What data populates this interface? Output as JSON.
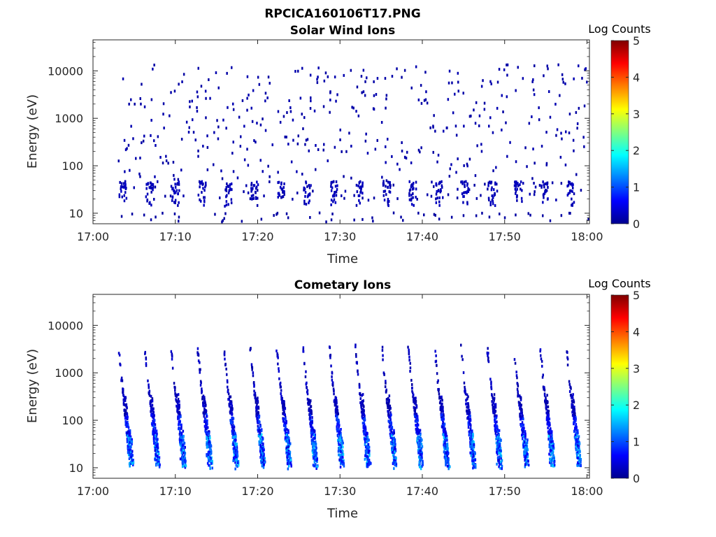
{
  "figure_title": "RPCICA160106T17.PNG",
  "colormap": {
    "name": "jet",
    "stops": [
      "#00008f",
      "#0000ff",
      "#00ffff",
      "#ffff00",
      "#ff0000",
      "#800000"
    ],
    "range": [
      0,
      5
    ],
    "ticks": [
      "0",
      "1",
      "2",
      "3",
      "4",
      "5"
    ],
    "label": "Log Counts"
  },
  "chart_data": [
    {
      "type": "heatmap",
      "title": "Solar Wind Ions",
      "xlabel": "Time",
      "ylabel": "Energy (eV)",
      "x_ticks": [
        "17:00",
        "17:10",
        "17:20",
        "17:30",
        "17:40",
        "17:50",
        "18:00"
      ],
      "x_tick_minutes": [
        0,
        10,
        20,
        30,
        40,
        50,
        60
      ],
      "xlim_minutes": [
        0,
        60.3
      ],
      "y_scale": "log",
      "y_ticks": [
        "10",
        "100",
        "1000",
        "10000"
      ],
      "y_tick_values": [
        10,
        100,
        1000,
        10000
      ],
      "ylim": [
        6,
        45000
      ],
      "data_start_minute": 3,
      "sweep_period_minutes": 3.2,
      "description_of_values": "sparse single counts (log counts ~0.1) scattered at all energies; denser cluster 15-50 eV",
      "max_log_counts": 0.3
    },
    {
      "type": "heatmap",
      "title": "Cometary Ions",
      "xlabel": "Time",
      "ylabel": "Energy (eV)",
      "x_ticks": [
        "17:00",
        "17:10",
        "17:20",
        "17:30",
        "17:40",
        "17:50",
        "18:00"
      ],
      "x_tick_minutes": [
        0,
        10,
        20,
        30,
        40,
        50,
        60
      ],
      "xlim_minutes": [
        0,
        60.3
      ],
      "y_scale": "log",
      "y_ticks": [
        "10",
        "100",
        "1000",
        "10000"
      ],
      "y_tick_values": [
        10,
        100,
        1000,
        10000
      ],
      "ylim": [
        6,
        45000
      ],
      "data_start_minute": 3,
      "sweep_period_minutes": 3.2,
      "description_of_values": "repeating energy sweeps from ~3500 eV down to ~12 eV; highest log counts ~1.7 near 20-40 eV",
      "max_log_counts": 1.7
    }
  ]
}
